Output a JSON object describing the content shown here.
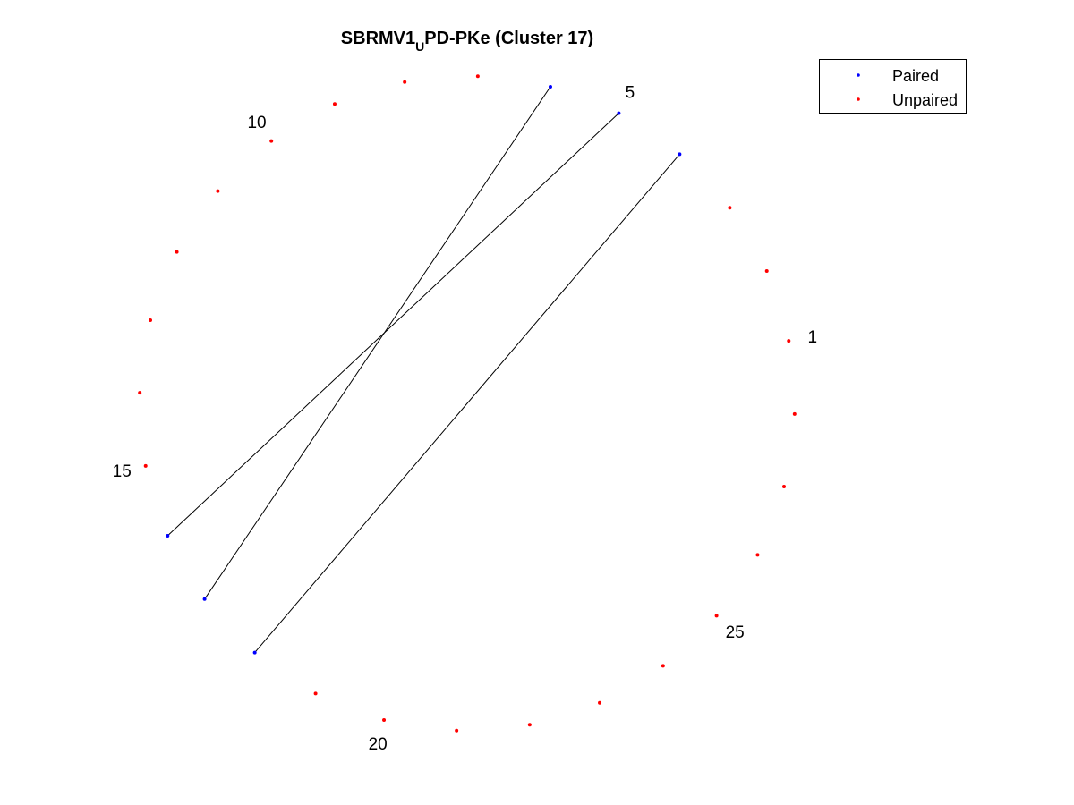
{
  "chart_data": {
    "type": "scatter",
    "title": {
      "main": "SBRMV1",
      "subscript": "U",
      "rest": "PD-PKe (Cluster 17)"
    },
    "layout": "circular",
    "n_positions": 28,
    "position_labels": [
      "1",
      "5",
      "10",
      "15",
      "20",
      "25"
    ],
    "label_positions": [
      1,
      5,
      10,
      15,
      20,
      25
    ],
    "series": [
      {
        "name": "Paired",
        "color": "#0000ff",
        "positions": [
          4,
          5,
          6,
          16,
          17,
          18
        ]
      },
      {
        "name": "Unpaired",
        "color": "#ff0000",
        "positions": [
          1,
          2,
          3,
          7,
          8,
          9,
          10,
          11,
          12,
          13,
          14,
          15,
          19,
          20,
          21,
          22,
          23,
          24,
          25,
          26,
          27,
          28
        ]
      }
    ],
    "arcs": [
      {
        "from": 4,
        "to": 18
      },
      {
        "from": 5,
        "to": 16
      },
      {
        "from": 6,
        "to": 17
      }
    ],
    "legend_position": "top-right",
    "grid": false,
    "axes_visible": false
  }
}
